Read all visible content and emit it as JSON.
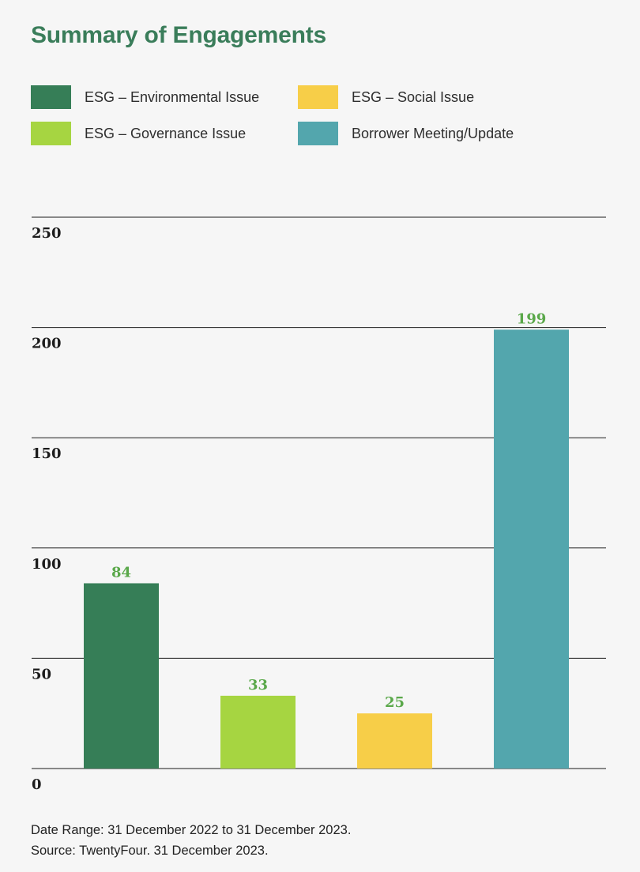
{
  "title": "Summary of Engagements",
  "legend": [
    {
      "label": "ESG – Environmental Issue",
      "color": "#367e57"
    },
    {
      "label": "ESG – Social Issue",
      "color": "#f7ce48"
    },
    {
      "label": "ESG – Governance Issue",
      "color": "#a6d541"
    },
    {
      "label": "Borrower Meeting/Update",
      "color": "#53a6ad"
    }
  ],
  "footnotes": {
    "date_range": "Date Range: 31 December 2022 to 31 December 2023.",
    "source": "Source: TwentyFour. 31 December 2023."
  },
  "chart_data": {
    "type": "bar",
    "title": "Summary of Engagements",
    "xlabel": "",
    "ylabel": "",
    "ylim": [
      0,
      250
    ],
    "yticks": [
      0,
      50,
      100,
      150,
      200,
      250
    ],
    "grid": true,
    "legend_position": "top",
    "categories": [
      "ESG – Environmental Issue",
      "ESG – Governance Issue",
      "ESG – Social Issue",
      "Borrower Meeting/Update"
    ],
    "values": [
      84,
      33,
      25,
      199
    ],
    "colors": [
      "#367e57",
      "#a6d541",
      "#f7ce48",
      "#53a6ad"
    ],
    "data_labels": [
      "84",
      "33",
      "25",
      "199"
    ]
  }
}
